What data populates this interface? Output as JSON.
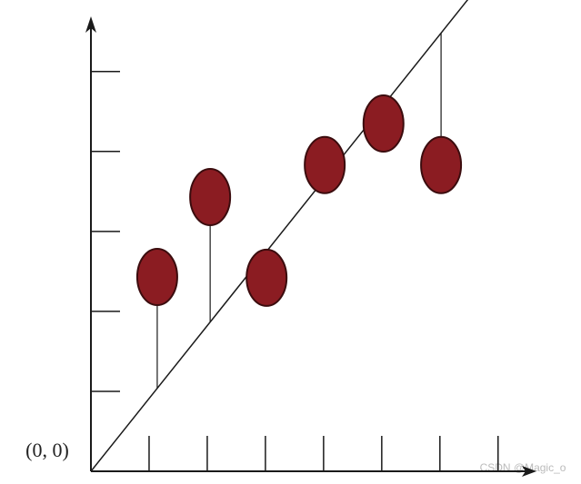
{
  "chart_data": {
    "type": "scatter",
    "origin_label": "(0, 0)",
    "watermark": "CSDN @Magic_o",
    "x": [
      1.14,
      2.05,
      3.02,
      4.02,
      5.03,
      6.02
    ],
    "y": [
      2.43,
      3.43,
      2.42,
      3.83,
      4.35,
      3.83
    ],
    "color": "#8b1c22",
    "fit_line": {
      "x": [
        0,
        6.48
      ],
      "y": [
        0,
        5.9
      ]
    },
    "xlim": [
      0,
      7.66
    ],
    "ylim": [
      0,
      5.69
    ],
    "xticks": [
      1,
      2,
      3,
      4,
      5,
      6,
      7
    ],
    "yticks": [
      1,
      2,
      3,
      4,
      5
    ]
  }
}
